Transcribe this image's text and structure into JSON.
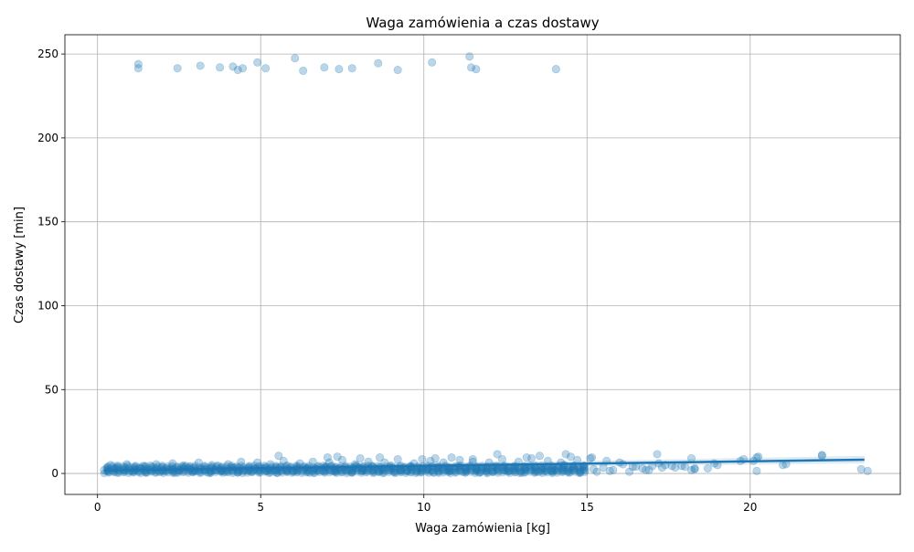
{
  "chart_data": {
    "type": "scatter",
    "title": "Waga zamówienia a czas dostawy",
    "xlabel": "Waga zamówienia [kg]",
    "ylabel": "Czas dostawy [min]",
    "xlim": [
      -1.0,
      24.6
    ],
    "ylim": [
      -12.5,
      261.5
    ],
    "xticks": [
      0,
      5,
      10,
      15,
      20
    ],
    "yticks": [
      0,
      50,
      100,
      150,
      200,
      250
    ],
    "grid": true,
    "legend": "none",
    "colors": {
      "points": "#1f77b4",
      "line": "#1f77b4",
      "band": "#1f77b4",
      "grid": "#b0b0b0"
    },
    "series": [
      {
        "kind": "points",
        "x": [
          1.25,
          1.25,
          2.45,
          3.15,
          3.75,
          4.15,
          4.3,
          4.45,
          4.9,
          5.15,
          6.05,
          6.3,
          6.95,
          7.4,
          7.8,
          8.6,
          9.2,
          10.25,
          11.4,
          11.45,
          11.6,
          14.05,
          0.2,
          0.35,
          0.55,
          0.8,
          1.05,
          1.3,
          1.6,
          1.9,
          2.2,
          2.5,
          2.8,
          3.0,
          3.3,
          3.6,
          3.9,
          4.2,
          4.5,
          4.8,
          5.1,
          5.4,
          5.6,
          5.8,
          6.1,
          6.4,
          6.7,
          7.0,
          7.2,
          7.4,
          7.7,
          8.0,
          8.2,
          8.4,
          8.7,
          9.0,
          9.3,
          9.6,
          9.9,
          10.1,
          10.4,
          10.7,
          11.0,
          11.3,
          11.6,
          11.9,
          12.2,
          12.5,
          12.8,
          13.1,
          13.4,
          13.7,
          14.0,
          14.3,
          14.6,
          14.9,
          15.2,
          15.5,
          15.8,
          16.1,
          16.4,
          16.7,
          17.0,
          17.2,
          17.4,
          17.7,
          18.0,
          18.3,
          18.7,
          19.7,
          20.2,
          21.0,
          22.2,
          23.4,
          23.6,
          0.4,
          0.9,
          1.4,
          1.8,
          2.3,
          2.7,
          3.1,
          3.5,
          4.0,
          4.4,
          4.9,
          5.3,
          5.7,
          6.2,
          6.6,
          7.1,
          7.5,
          7.9,
          8.3,
          8.8,
          9.2,
          9.7,
          10.2,
          10.6,
          11.1,
          11.5,
          12.0,
          12.4,
          12.9,
          13.3,
          13.8,
          14.2,
          14.7,
          15.1,
          15.6,
          16.0,
          16.5,
          16.9,
          17.6,
          18.2,
          18.9,
          19.8,
          20.2,
          0.6,
          1.1,
          1.5,
          2.0,
          2.4,
          2.9,
          3.4,
          3.8,
          4.3,
          4.7,
          5.2,
          5.5,
          6.0,
          6.5,
          6.9,
          7.3,
          7.8,
          8.1,
          8.6,
          9.1,
          9.5,
          9.8,
          10.3,
          10.8,
          11.2,
          11.7,
          12.1,
          12.6,
          13.0,
          13.5,
          13.9,
          14.4,
          14.8,
          15.3,
          15.7,
          16.3,
          16.8,
          17.3,
          17.9,
          18.3,
          19.0,
          20.1,
          21.1,
          5.55,
          7.05,
          7.35,
          8.05,
          8.65,
          9.95,
          10.35,
          10.85,
          11.5,
          12.25,
          13.15,
          13.55,
          14.35,
          14.5,
          15.15,
          17.15,
          18.2,
          20.25,
          22.2
        ],
        "y": [
          241.5,
          244.0,
          241.5,
          243.0,
          242.0,
          242.5,
          240.5,
          241.5,
          245.0,
          241.5,
          247.5,
          240.0,
          242.0,
          241.0,
          241.5,
          244.5,
          240.5,
          245.0,
          248.5,
          242.0,
          241.0,
          241.0,
          2.0,
          1.0,
          3.0,
          2.0,
          1.5,
          3.0,
          2.0,
          1.0,
          2.5,
          2.0,
          3.0,
          1.5,
          2.5,
          2.0,
          1.0,
          3.5,
          2.0,
          2.5,
          3.0,
          2.0,
          4.0,
          1.5,
          2.0,
          3.0,
          2.5,
          4.0,
          1.5,
          3.0,
          2.0,
          3.5,
          2.0,
          4.5,
          2.5,
          3.0,
          2.0,
          4.0,
          3.0,
          2.5,
          3.5,
          2.0,
          4.0,
          3.0,
          2.5,
          3.5,
          4.0,
          2.0,
          3.5,
          2.5,
          4.5,
          3.0,
          2.0,
          5.0,
          3.0,
          4.5,
          2.5,
          3.5,
          2.0,
          5.5,
          4.0,
          3.0,
          4.5,
          6.0,
          5.0,
          3.5,
          4.0,
          2.5,
          3.0,
          7.5,
          1.5,
          5.0,
          11.0,
          2.5,
          1.5,
          5.0,
          5.5,
          4.5,
          5.5,
          6.0,
          4.5,
          6.5,
          5.0,
          5.5,
          7.0,
          6.5,
          5.5,
          7.5,
          6.0,
          7.0,
          6.5,
          8.0,
          5.5,
          7.0,
          6.5,
          8.5,
          6.0,
          7.5,
          6.5,
          8.0,
          7.0,
          6.5,
          8.5,
          7.0,
          9.0,
          7.5,
          6.5,
          8.0,
          9.0,
          7.5,
          6.5,
          4.0,
          2.0,
          4.5,
          2.0,
          6.0,
          8.5,
          9.5,
          0.5,
          1.0,
          0.5,
          1.5,
          0.5,
          1.0,
          0.5,
          1.5,
          0.5,
          1.0,
          1.5,
          0.5,
          1.0,
          0.5,
          1.5,
          1.0,
          0.5,
          1.5,
          1.0,
          0.5,
          1.5,
          1.0,
          0.5,
          1.5,
          1.0,
          0.5,
          1.0,
          1.5,
          0.5,
          1.0,
          1.5,
          1.0,
          0.5,
          1.0,
          1.5,
          1.0,
          2.0,
          3.5,
          4.5,
          3.0,
          5.0,
          7.5,
          5.5,
          10.5,
          9.5,
          10.0,
          9.0,
          9.5,
          8.5,
          9.0,
          9.5,
          8.5,
          11.5,
          9.5,
          10.5,
          11.5,
          10.0,
          9.5,
          11.5,
          9.0,
          10.0,
          10.5
        ]
      },
      {
        "kind": "regression",
        "x": [
          0.2,
          23.5
        ],
        "y": [
          1.8,
          8.2
        ],
        "ci_low": [
          1.2,
          6.0
        ],
        "ci_high": [
          2.4,
          10.5
        ]
      }
    ]
  }
}
